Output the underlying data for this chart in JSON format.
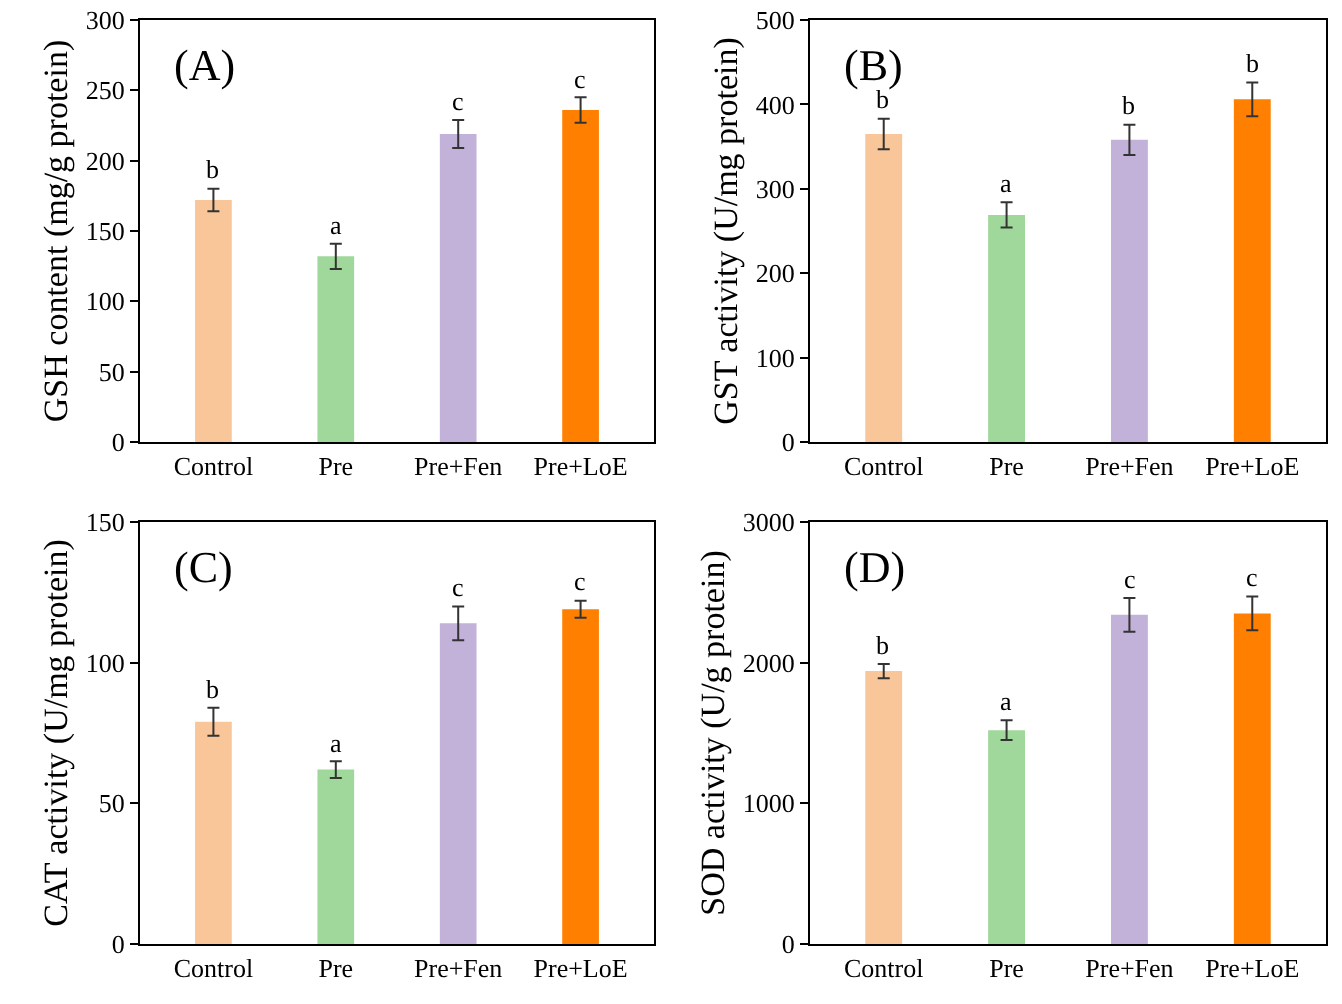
{
  "chart_data": [
    {
      "type": "bar",
      "title": "(A)",
      "ylabel": "GSH content (mg/g protein)",
      "categories": [
        "Control",
        "Pre",
        "Pre+Fen",
        "Pre+LoE"
      ],
      "values": [
        172,
        132,
        219,
        236
      ],
      "errors": [
        8,
        9,
        10,
        9
      ],
      "colors": [
        "#f9c699",
        "#9fd89a",
        "#c2b1d8",
        "#ff8000"
      ],
      "ylim": [
        0,
        300
      ],
      "yticks": [
        0,
        50,
        100,
        150,
        200,
        250,
        300
      ],
      "annotations": [
        {
          "text": "b",
          "x": "Control",
          "y": 180
        },
        {
          "text": "a",
          "x": "Pre",
          "y": 141
        },
        {
          "text": "c",
          "x": "Pre+Fen",
          "y": 229
        },
        {
          "text": "c",
          "x": "Pre+LoE",
          "y": 245
        }
      ]
    },
    {
      "type": "bar",
      "title": "(B)",
      "ylabel": "GST activity (U/mg protein)",
      "categories": [
        "Control",
        "Pre",
        "Pre+Fen",
        "Pre+LoE"
      ],
      "values": [
        365,
        269,
        358,
        406
      ],
      "errors": [
        18,
        15,
        18,
        20
      ],
      "colors": [
        "#f9c699",
        "#9fd89a",
        "#c2b1d8",
        "#ff8000"
      ],
      "ylim": [
        0,
        500
      ],
      "yticks": [
        0,
        100,
        200,
        300,
        400,
        500
      ],
      "annotations": [
        {
          "text": "b",
          "x": "Control",
          "y": 383
        },
        {
          "text": "a",
          "x": "Pre",
          "y": 284
        },
        {
          "text": "b",
          "x": "Pre+Fen",
          "y": 376
        },
        {
          "text": "b",
          "x": "Pre+LoE",
          "y": 426
        }
      ]
    },
    {
      "type": "bar",
      "title": "(C)",
      "ylabel": "CAT activity (U/mg protein)",
      "categories": [
        "Control",
        "Pre",
        "Pre+Fen",
        "Pre+LoE"
      ],
      "values": [
        79,
        62,
        114,
        119
      ],
      "errors": [
        5,
        3,
        6,
        3
      ],
      "colors": [
        "#f9c699",
        "#9fd89a",
        "#c2b1d8",
        "#ff8000"
      ],
      "ylim": [
        0,
        150
      ],
      "yticks": [
        0,
        50,
        100,
        150
      ],
      "annotations": [
        {
          "text": "b",
          "x": "Control",
          "y": 84
        },
        {
          "text": "a",
          "x": "Pre",
          "y": 65
        },
        {
          "text": "c",
          "x": "Pre+Fen",
          "y": 120
        },
        {
          "text": "c",
          "x": "Pre+LoE",
          "y": 122
        }
      ]
    },
    {
      "type": "bar",
      "title": "(D)",
      "ylabel": "SOD activity (U/g protein)",
      "categories": [
        "Control",
        "Pre",
        "Pre+Fen",
        "Pre+LoE"
      ],
      "values": [
        1940,
        1520,
        2340,
        2350
      ],
      "errors": [
        50,
        70,
        120,
        120
      ],
      "colors": [
        "#f9c699",
        "#9fd89a",
        "#c2b1d8",
        "#ff8000"
      ],
      "ylim": [
        0,
        3000
      ],
      "yticks": [
        0,
        1000,
        2000,
        3000
      ],
      "annotations": [
        {
          "text": "b",
          "x": "Control",
          "y": 1990
        },
        {
          "text": "a",
          "x": "Pre",
          "y": 1590
        },
        {
          "text": "c",
          "x": "Pre+Fen",
          "y": 2460
        },
        {
          "text": "c",
          "x": "Pre+LoE",
          "y": 2470
        }
      ]
    }
  ]
}
